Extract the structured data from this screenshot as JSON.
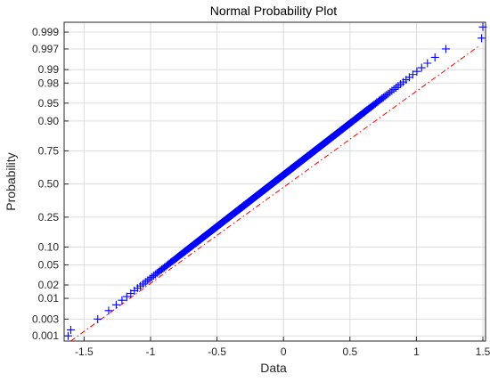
{
  "chart_data": {
    "type": "scatter",
    "title": "Normal Probability Plot",
    "xlabel": "Data",
    "ylabel": "Probability",
    "xlim": [
      -1.65,
      1.52
    ],
    "y_scale": "normal-probability",
    "grid": true,
    "x_ticks": [
      -1.5,
      -1,
      -0.5,
      0,
      0.5,
      1,
      1.5
    ],
    "x_tick_labels": [
      "-1.5",
      "-1",
      "-0.5",
      "0",
      "0.5",
      "1",
      "1.5"
    ],
    "y_ticks": [
      0.001,
      0.003,
      0.01,
      0.02,
      0.05,
      0.1,
      0.25,
      0.5,
      0.75,
      0.9,
      0.95,
      0.98,
      0.99,
      0.997,
      0.999
    ],
    "y_tick_labels": [
      "0.001",
      "0.003",
      "0.01",
      "0.02",
      "0.05",
      "0.10",
      "0.25",
      "0.50",
      "0.75",
      "0.90",
      "0.95",
      "0.98",
      "0.99",
      "0.997",
      "0.999"
    ],
    "series": [
      {
        "marker": "plus",
        "color": "#0000ff",
        "n_points": 500,
        "x_min": -1.62,
        "x_max": 1.5,
        "outlier_points": [
          {
            "x": -1.62,
            "p": 0.001
          },
          {
            "x": -1.6,
            "p": 0.0015
          },
          {
            "x": 1.49,
            "p": 0.9985
          },
          {
            "x": 1.5,
            "p": 0.9993
          }
        ]
      }
    ],
    "reference_line": {
      "style": "dash-dot",
      "color": "#ff0000",
      "x": [
        -1.6,
        1.47
      ],
      "p": [
        0.0007,
        0.9975
      ]
    }
  }
}
